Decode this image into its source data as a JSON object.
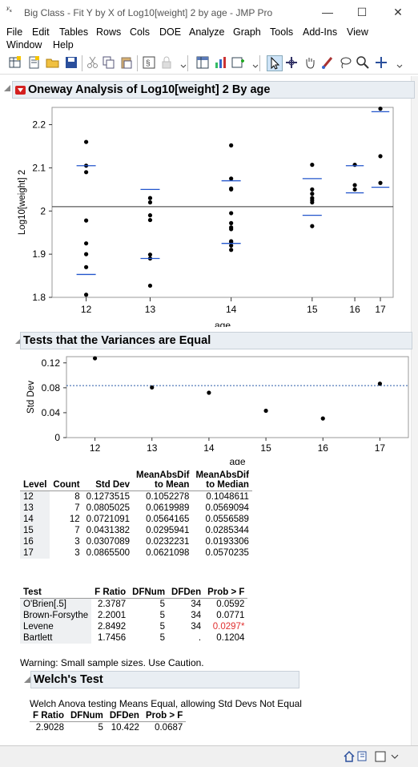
{
  "window": {
    "title": "Big Class - Fit Y by X of Log10[weight] 2 by age - JMP Pro",
    "minimize": "—",
    "maximize": "☐",
    "close": "✕"
  },
  "menu": [
    "File",
    "Edit",
    "Tables",
    "Rows",
    "Cols",
    "DOE",
    "Analyze",
    "Graph",
    "Tools",
    "Add-Ins",
    "View",
    "Window",
    "Help"
  ],
  "toolbar_icons": [
    "new-data-table-icon",
    "new-script-icon",
    "open-icon",
    "save-icon",
    "cut-icon",
    "copy-icon",
    "paste-icon",
    "show-log-icon",
    "lock-icon",
    "data-table-list-icon",
    "chart-icon",
    "add-column-icon",
    "arrow-tool-icon",
    "crosshair-tool-icon",
    "grabber-tool-icon",
    "brush-tool-icon",
    "lasso-tool-icon",
    "magnifier-tool-icon",
    "crosshair-plus-icon"
  ],
  "oneway": {
    "heading": "Oneway Analysis of Log10[weight] 2 By age",
    "chart_data": {
      "type": "scatter",
      "xlabel": "age",
      "ylabel": "Log10[weight] 2",
      "ylim": [
        1.8,
        2.24
      ],
      "yticks": [
        "1.8",
        "1.9",
        "2",
        "2.1",
        "2.2"
      ],
      "categories": [
        "12",
        "13",
        "14",
        "15",
        "16",
        "17"
      ],
      "grand_mean": 2.01,
      "points": {
        "12": [
          2.16,
          2.105,
          2.09,
          1.978,
          1.925,
          1.9,
          1.87,
          1.806
        ],
        "13": [
          2.03,
          2.02,
          1.99,
          1.979,
          1.899,
          1.827,
          1.89
        ],
        "14": [
          2.152,
          2.075,
          2.052,
          2.05,
          1.995,
          1.972,
          1.962,
          1.958,
          1.93,
          1.928,
          1.92,
          1.91
        ],
        "15": [
          2.107,
          2.05,
          2.04,
          2.03,
          2.025,
          2.02,
          1.965
        ],
        "16": [
          2.107,
          2.06,
          2.05
        ],
        "17": [
          2.237,
          2.127,
          2.065
        ]
      },
      "means": {
        "12": 2.105,
        "13": 2.05,
        "14": 2.07,
        "15": 2.075,
        "16": 2.105,
        "17": 2.23
      },
      "mean_low": {
        "12": 1.853,
        "13": 1.89,
        "14": 1.925,
        "15": 1.99,
        "16": 2.042,
        "17": 2.055
      }
    }
  },
  "variances": {
    "heading": "Tests that the Variances are Equal",
    "chart_data": {
      "type": "scatter",
      "xlabel": "age",
      "ylabel": "Std Dev",
      "ylim": [
        0,
        0.13
      ],
      "yticks": [
        "0",
        "0.04",
        "0.08",
        "0.12"
      ],
      "categories": [
        "12",
        "13",
        "14",
        "15",
        "16",
        "17"
      ],
      "values": [
        0.1273515,
        0.0805025,
        0.0721091,
        0.0431382,
        0.0307089,
        0.08655
      ],
      "reference_line": 0.0835
    },
    "table": {
      "headers": [
        "Level",
        "Count",
        "Std Dev",
        "MeanAbsDif to Mean",
        "MeanAbsDif to Median"
      ],
      "header_lines": [
        [
          "Level"
        ],
        [
          "Count"
        ],
        [
          "Std Dev"
        ],
        [
          "MeanAbsDif",
          "to Mean"
        ],
        [
          "MeanAbsDif",
          "to Median"
        ]
      ],
      "rows": [
        [
          "12",
          "8",
          "0.1273515",
          "0.1052278",
          "0.1048611"
        ],
        [
          "13",
          "7",
          "0.0805025",
          "0.0619989",
          "0.0569094"
        ],
        [
          "14",
          "12",
          "0.0721091",
          "0.0564165",
          "0.0556589"
        ],
        [
          "15",
          "7",
          "0.0431382",
          "0.0295941",
          "0.0285344"
        ],
        [
          "16",
          "3",
          "0.0307089",
          "0.0232231",
          "0.0193306"
        ],
        [
          "17",
          "3",
          "0.0865500",
          "0.0621098",
          "0.0570235"
        ]
      ]
    },
    "tests": {
      "headers": [
        "Test",
        "F Ratio",
        "DFNum",
        "DFDen",
        "Prob > F"
      ],
      "rows": [
        [
          "O'Brien[.5]",
          "2.3787",
          "5",
          "34",
          "0.0592"
        ],
        [
          "Brown-Forsythe",
          "2.2001",
          "5",
          "34",
          "0.0771"
        ],
        [
          "Levene",
          "2.8492",
          "5",
          "34",
          "0.0297*"
        ],
        [
          "Bartlett",
          "1.7456",
          "5",
          ".",
          "0.1204"
        ]
      ],
      "significant_color": "#e03030"
    },
    "warning": "Warning: Small sample sizes. Use Caution."
  },
  "welch": {
    "heading": "Welch's Test",
    "subtitle": "Welch Anova testing Means Equal, allowing Std Devs Not Equal",
    "headers": [
      "F Ratio",
      "DFNum",
      "DFDen",
      "Prob > F"
    ],
    "row": [
      "2.9028",
      "5",
      "10.422",
      "0.0687"
    ]
  },
  "colors": {
    "mean_tick": "#2255cc",
    "ref_line": "#2a5aa8",
    "header_bg": "#e9eef3",
    "red_triangle": "#d42020"
  }
}
